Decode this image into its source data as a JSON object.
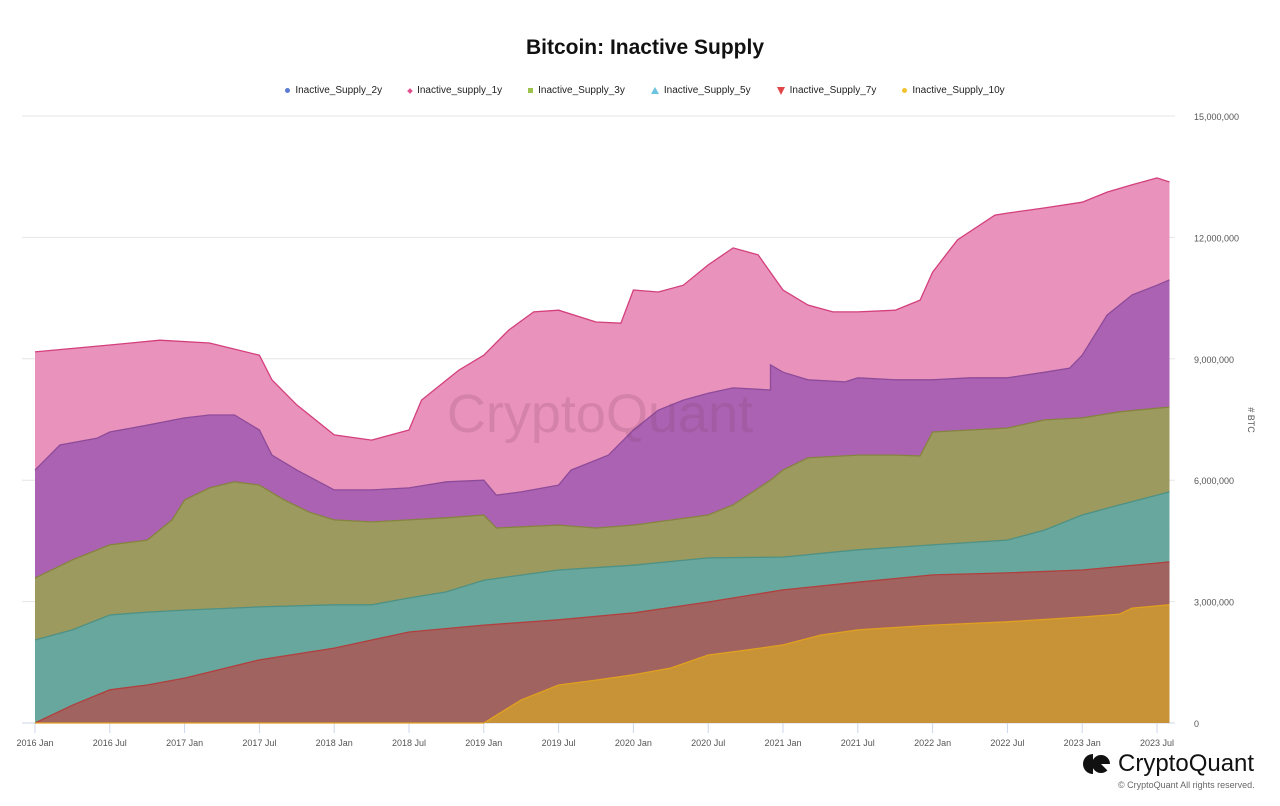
{
  "chart_data": {
    "type": "area",
    "title": "Bitcoin: Inactive Supply",
    "ylabel": "# BTC",
    "ylim": [
      0,
      15000000
    ],
    "yticks": [
      "0",
      "3,000,000",
      "6,000,000",
      "9,000,000",
      "12,000,000",
      "15,000,000"
    ],
    "xticks": [
      "2016 Jan",
      "2016 Jul",
      "2017 Jan",
      "2017 Jul",
      "2018 Jan",
      "2018 Jul",
      "2019 Jan",
      "2019 Jul",
      "2020 Jan",
      "2020 Jul",
      "2021 Jan",
      "2021 Jul",
      "2022 Jan",
      "2022 Jul",
      "2023 Jan",
      "2023 Jul"
    ],
    "grid": true,
    "legend_position": "top",
    "watermark": "CryptoQuant",
    "series": [
      {
        "name": "Inactive_supply_1y",
        "marker": "diamond",
        "marker_color": "#e0528f",
        "fill": "#e992bb",
        "line": "#d33f7c",
        "points": [
          [
            "2016-01",
            9.17
          ],
          [
            "2016-07",
            9.34
          ],
          [
            "2016-11",
            9.46
          ],
          [
            "2017-03",
            9.39
          ],
          [
            "2017-07",
            9.09
          ],
          [
            "2017-08",
            8.48
          ],
          [
            "2017-10",
            7.86
          ],
          [
            "2018-01",
            7.12
          ],
          [
            "2018-04",
            6.99
          ],
          [
            "2018-07",
            7.24
          ],
          [
            "2018-08",
            7.98
          ],
          [
            "2018-11",
            8.72
          ],
          [
            "2019-01",
            9.09
          ],
          [
            "2019-03",
            9.71
          ],
          [
            "2019-05",
            10.16
          ],
          [
            "2019-07",
            10.2
          ],
          [
            "2019-10",
            9.91
          ],
          [
            "2019-12",
            9.88
          ],
          [
            "2020-01",
            10.7
          ],
          [
            "2020-03",
            10.65
          ],
          [
            "2020-05",
            10.82
          ],
          [
            "2020-07",
            11.32
          ],
          [
            "2020-09",
            11.74
          ],
          [
            "2020-11",
            11.57
          ],
          [
            "2021-01",
            10.7
          ],
          [
            "2021-03",
            10.33
          ],
          [
            "2021-05",
            10.16
          ],
          [
            "2021-07",
            10.16
          ],
          [
            "2021-10",
            10.2
          ],
          [
            "2021-12",
            10.45
          ],
          [
            "2022-01",
            11.14
          ],
          [
            "2022-03",
            11.94
          ],
          [
            "2022-06",
            12.55
          ],
          [
            "2022-07",
            12.6
          ],
          [
            "2022-10",
            12.73
          ],
          [
            "2023-01",
            12.87
          ],
          [
            "2023-03",
            13.12
          ],
          [
            "2023-05",
            13.3
          ],
          [
            "2023-07",
            13.47
          ],
          [
            "2023-08",
            13.37
          ]
        ]
      },
      {
        "name": "Inactive_Supply_2y",
        "marker": "circle",
        "marker_color": "#5b7bd5",
        "fill": "#ac62b2",
        "line": "#8e4b9a",
        "points": [
          [
            "2016-01",
            6.25
          ],
          [
            "2016-03",
            6.87
          ],
          [
            "2016-06",
            7.04
          ],
          [
            "2016-07",
            7.19
          ],
          [
            "2016-10",
            7.36
          ],
          [
            "2017-01",
            7.54
          ],
          [
            "2017-03",
            7.61
          ],
          [
            "2017-05",
            7.61
          ],
          [
            "2017-07",
            7.24
          ],
          [
            "2017-08",
            6.62
          ],
          [
            "2017-10",
            6.25
          ],
          [
            "2018-01",
            5.76
          ],
          [
            "2018-04",
            5.76
          ],
          [
            "2018-07",
            5.81
          ],
          [
            "2018-10",
            5.96
          ],
          [
            "2019-01",
            6.0
          ],
          [
            "2019-02",
            5.63
          ],
          [
            "2019-04",
            5.71
          ],
          [
            "2019-07",
            5.88
          ],
          [
            "2019-08",
            6.25
          ],
          [
            "2019-11",
            6.62
          ],
          [
            "2020-01",
            7.24
          ],
          [
            "2020-03",
            7.73
          ],
          [
            "2020-05",
            7.98
          ],
          [
            "2020-07",
            8.15
          ],
          [
            "2020-09",
            8.28
          ],
          [
            "2020-12",
            8.23
          ],
          [
            "2020-12",
            8.85
          ],
          [
            "2021-01",
            8.67
          ],
          [
            "2021-03",
            8.48
          ],
          [
            "2021-06",
            8.43
          ],
          [
            "2021-07",
            8.53
          ],
          [
            "2021-10",
            8.48
          ],
          [
            "2022-01",
            8.48
          ],
          [
            "2022-04",
            8.53
          ],
          [
            "2022-07",
            8.53
          ],
          [
            "2022-10",
            8.67
          ],
          [
            "2022-12",
            8.77
          ],
          [
            "2023-01",
            9.09
          ],
          [
            "2023-03",
            10.08
          ],
          [
            "2023-05",
            10.58
          ],
          [
            "2023-07",
            10.82
          ],
          [
            "2023-08",
            10.95
          ]
        ]
      },
      {
        "name": "Inactive_Supply_3y",
        "marker": "square",
        "marker_color": "#9cc34c",
        "fill": "#9c9a5e",
        "line": "#85843f",
        "points": [
          [
            "2016-01",
            3.58
          ],
          [
            "2016-04",
            4.03
          ],
          [
            "2016-07",
            4.4
          ],
          [
            "2016-10",
            4.52
          ],
          [
            "2016-12",
            5.02
          ],
          [
            "2017-01",
            5.51
          ],
          [
            "2017-03",
            5.81
          ],
          [
            "2017-05",
            5.96
          ],
          [
            "2017-07",
            5.88
          ],
          [
            "2017-09",
            5.51
          ],
          [
            "2017-11",
            5.21
          ],
          [
            "2018-01",
            5.02
          ],
          [
            "2018-04",
            4.97
          ],
          [
            "2018-07",
            5.02
          ],
          [
            "2018-10",
            5.07
          ],
          [
            "2019-01",
            5.14
          ],
          [
            "2019-02",
            4.82
          ],
          [
            "2019-07",
            4.89
          ],
          [
            "2019-10",
            4.82
          ],
          [
            "2020-01",
            4.89
          ],
          [
            "2020-07",
            5.14
          ],
          [
            "2020-09",
            5.39
          ],
          [
            "2020-12",
            6.0
          ],
          [
            "2021-01",
            6.25
          ],
          [
            "2021-03",
            6.55
          ],
          [
            "2021-07",
            6.62
          ],
          [
            "2021-10",
            6.62
          ],
          [
            "2021-12",
            6.6
          ],
          [
            "2022-01",
            7.19
          ],
          [
            "2022-04",
            7.24
          ],
          [
            "2022-07",
            7.29
          ],
          [
            "2022-10",
            7.49
          ],
          [
            "2023-01",
            7.54
          ],
          [
            "2023-04",
            7.69
          ],
          [
            "2023-08",
            7.81
          ]
        ]
      },
      {
        "name": "Inactive_Supply_5y",
        "marker": "triangle",
        "marker_color": "#6cc3e0",
        "fill": "#68a79d",
        "line": "#4e9185",
        "points": [
          [
            "2016-01",
            2.05
          ],
          [
            "2016-04",
            2.3
          ],
          [
            "2016-07",
            2.67
          ],
          [
            "2016-10",
            2.74
          ],
          [
            "2017-01",
            2.79
          ],
          [
            "2017-07",
            2.87
          ],
          [
            "2018-01",
            2.92
          ],
          [
            "2018-04",
            2.92
          ],
          [
            "2018-07",
            3.09
          ],
          [
            "2018-10",
            3.24
          ],
          [
            "2019-01",
            3.53
          ],
          [
            "2019-07",
            3.78
          ],
          [
            "2020-01",
            3.9
          ],
          [
            "2020-07",
            4.08
          ],
          [
            "2021-01",
            4.1
          ],
          [
            "2021-07",
            4.28
          ],
          [
            "2022-01",
            4.4
          ],
          [
            "2022-07",
            4.52
          ],
          [
            "2022-10",
            4.77
          ],
          [
            "2023-01",
            5.14
          ],
          [
            "2023-04",
            5.39
          ],
          [
            "2023-08",
            5.71
          ]
        ]
      },
      {
        "name": "Inactive_Supply_7y",
        "marker": "triangle-down",
        "marker_color": "#e0454a",
        "fill": "#a0635f",
        "line": "#b0403f",
        "points": [
          [
            "2016-01",
            0
          ],
          [
            "2016-04",
            0.44
          ],
          [
            "2016-07",
            0.82
          ],
          [
            "2016-10",
            0.94
          ],
          [
            "2017-01",
            1.11
          ],
          [
            "2017-07",
            1.56
          ],
          [
            "2018-01",
            1.85
          ],
          [
            "2018-07",
            2.25
          ],
          [
            "2019-01",
            2.42
          ],
          [
            "2019-07",
            2.55
          ],
          [
            "2020-01",
            2.72
          ],
          [
            "2020-07",
            2.99
          ],
          [
            "2021-01",
            3.29
          ],
          [
            "2021-07",
            3.48
          ],
          [
            "2022-01",
            3.66
          ],
          [
            "2022-07",
            3.71
          ],
          [
            "2023-01",
            3.78
          ],
          [
            "2023-08",
            3.98
          ]
        ]
      },
      {
        "name": "Inactive_Supply_10y",
        "marker": "circle",
        "marker_color": "#f2c230",
        "fill": "#c89237",
        "line": "#e0a020",
        "points": [
          [
            "2016-01",
            0
          ],
          [
            "2019-01",
            0
          ],
          [
            "2019-04",
            0.57
          ],
          [
            "2019-07",
            0.94
          ],
          [
            "2019-10",
            1.06
          ],
          [
            "2020-01",
            1.19
          ],
          [
            "2020-04",
            1.36
          ],
          [
            "2020-07",
            1.68
          ],
          [
            "2020-10",
            1.8
          ],
          [
            "2021-01",
            1.93
          ],
          [
            "2021-04",
            2.17
          ],
          [
            "2021-07",
            2.3
          ],
          [
            "2022-01",
            2.42
          ],
          [
            "2022-07",
            2.5
          ],
          [
            "2023-01",
            2.62
          ],
          [
            "2023-04",
            2.69
          ],
          [
            "2023-05",
            2.84
          ],
          [
            "2023-08",
            2.92
          ]
        ]
      }
    ],
    "value_unit_in_points": "millions BTC"
  },
  "legend_order": [
    1,
    0,
    2,
    3,
    4,
    5
  ],
  "branding": {
    "logo_text": "CryptoQuant",
    "copyright": "© CryptoQuant All rights reserved."
  }
}
